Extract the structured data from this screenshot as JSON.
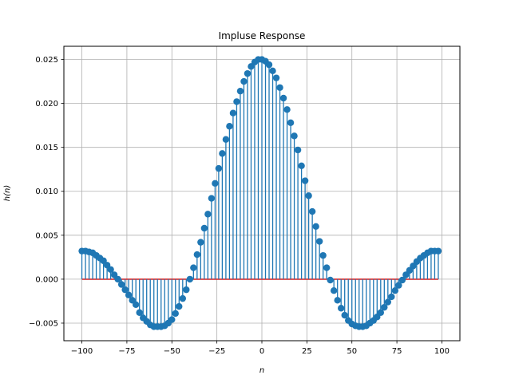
{
  "chart_data": {
    "type": "stem",
    "title": "Impluse Response",
    "xlabel": "n",
    "ylabel": "h(n)",
    "xlim": [
      -110,
      110
    ],
    "ylim": [
      -0.007,
      0.0265
    ],
    "xticks": [
      -100,
      -75,
      -50,
      -25,
      0,
      25,
      50,
      75,
      100
    ],
    "xtick_labels": [
      "−100",
      "−75",
      "−50",
      "−25",
      "0",
      "25",
      "50",
      "75",
      "100"
    ],
    "yticks": [
      -0.005,
      0.0,
      0.005,
      0.01,
      0.015,
      0.02,
      0.025
    ],
    "ytick_labels": [
      "−0.005",
      "0.000",
      "0.005",
      "0.010",
      "0.015",
      "0.020",
      "0.025"
    ],
    "grid": true,
    "colors": {
      "stem": "#1f77b4",
      "baseline": "#d62728",
      "grid": "#b0b0b0"
    },
    "series": [
      {
        "x": [
          -100,
          -98,
          -96,
          -94,
          -92,
          -90,
          -88,
          -86,
          -84,
          -82,
          -80,
          -78,
          -76,
          -74,
          -72,
          -70,
          -68,
          -66,
          -64,
          -62,
          -60,
          -58,
          -56,
          -54,
          -52,
          -50,
          -48,
          -46,
          -44,
          -42,
          -40,
          -38,
          -36,
          -34,
          -32,
          -30,
          -28,
          -26,
          -24,
          -22,
          -20,
          -18,
          -16,
          -14,
          -12,
          -10,
          -8,
          -6,
          -4,
          -2,
          0,
          2,
          4,
          6,
          8,
          10,
          12,
          14,
          16,
          18,
          20,
          22,
          24,
          26,
          28,
          30,
          32,
          34,
          36,
          38,
          40,
          42,
          44,
          46,
          48,
          50,
          52,
          54,
          56,
          58,
          60,
          62,
          64,
          66,
          68,
          70,
          72,
          74,
          76,
          78,
          80,
          82,
          84,
          86,
          88,
          90,
          92,
          94,
          96,
          98
        ],
        "y": [
          0.0032,
          0.0032,
          0.0031,
          0.003,
          0.0027,
          0.0024,
          0.0021,
          0.0016,
          0.0011,
          0.0005,
          0.0,
          -0.0006,
          -0.0012,
          -0.0018,
          -0.0024,
          -0.0029,
          -0.0038,
          -0.0044,
          -0.0048,
          -0.0052,
          -0.0054,
          -0.0054,
          -0.0054,
          -0.0053,
          -0.005,
          -0.0046,
          -0.0039,
          -0.0031,
          -0.0022,
          -0.0012,
          0.0,
          0.0013,
          0.0028,
          0.0042,
          0.0058,
          0.0074,
          0.0092,
          0.0109,
          0.0126,
          0.0143,
          0.0159,
          0.0174,
          0.0189,
          0.0202,
          0.0214,
          0.0225,
          0.0234,
          0.0242,
          0.0247,
          0.025,
          0.025,
          0.0248,
          0.0244,
          0.0237,
          0.0229,
          0.0218,
          0.0206,
          0.0193,
          0.0178,
          0.0163,
          0.0147,
          0.0129,
          0.0112,
          0.0095,
          0.0077,
          0.006,
          0.0043,
          0.0027,
          0.0013,
          -0.0001,
          -0.0013,
          -0.0024,
          -0.0033,
          -0.0041,
          -0.0047,
          -0.0051,
          -0.0053,
          -0.0054,
          -0.0054,
          -0.0053,
          -0.005,
          -0.0047,
          -0.0043,
          -0.0038,
          -0.0032,
          -0.0026,
          -0.002,
          -0.0013,
          -0.0007,
          -0.0001,
          0.0005,
          0.001,
          0.0015,
          0.002,
          0.0024,
          0.0027,
          0.003,
          0.0032,
          0.0032,
          0.0032
        ]
      }
    ]
  }
}
